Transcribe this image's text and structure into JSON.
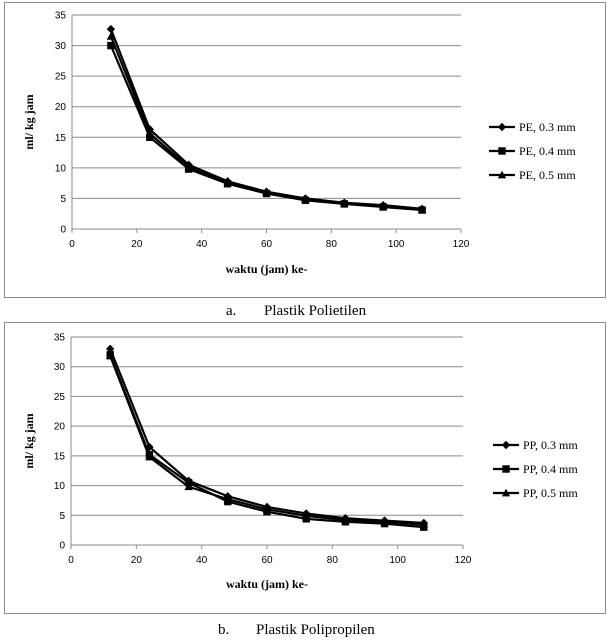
{
  "chart_data": [
    {
      "type": "line",
      "caption_letter": "a.",
      "caption_text": "Plastik Polietilen",
      "xlabel": "waktu (jam) ke-",
      "ylabel": "ml/ kg jam",
      "xlim": [
        0,
        120
      ],
      "ylim": [
        0,
        35
      ],
      "xticks": [
        0,
        20,
        40,
        60,
        80,
        100,
        120
      ],
      "yticks": [
        0,
        5,
        10,
        15,
        20,
        25,
        30,
        35
      ],
      "grid": true,
      "legend_position": "right",
      "x": [
        12,
        24,
        36,
        48,
        60,
        72,
        84,
        96,
        108
      ],
      "series": [
        {
          "name": "PE, 0.3 mm",
          "marker": "diamond",
          "values": [
            32.7,
            16.3,
            10.5,
            7.8,
            6.1,
            5.0,
            4.3,
            3.9,
            3.3
          ]
        },
        {
          "name": "PE, 0.4 mm",
          "marker": "square",
          "values": [
            30.0,
            15.0,
            9.8,
            7.4,
            5.8,
            4.7,
            4.1,
            3.6,
            3.1
          ]
        },
        {
          "name": "PE, 0.5 mm",
          "marker": "triangle",
          "values": [
            31.5,
            15.6,
            10.1,
            7.6,
            6.0,
            4.9,
            4.2,
            3.8,
            3.2
          ]
        }
      ]
    },
    {
      "type": "line",
      "caption_letter": "b.",
      "caption_text": "Plastik Polipropilen",
      "xlabel": "waktu (jam) ke-",
      "ylabel": "ml/ kg jam",
      "xlim": [
        0,
        120
      ],
      "ylim": [
        0,
        35
      ],
      "xticks": [
        0,
        20,
        40,
        60,
        80,
        100,
        120
      ],
      "yticks": [
        0,
        5,
        10,
        15,
        20,
        25,
        30,
        35
      ],
      "grid": true,
      "legend_position": "right",
      "x": [
        12,
        24,
        36,
        48,
        60,
        72,
        84,
        96,
        108
      ],
      "series": [
        {
          "name": "PP, 0.3 mm",
          "marker": "diamond",
          "values": [
            33.0,
            16.5,
            10.8,
            8.2,
            6.4,
            5.3,
            4.5,
            4.1,
            3.7
          ]
        },
        {
          "name": "PP, 0.4 mm",
          "marker": "square",
          "values": [
            32.0,
            15.2,
            10.5,
            7.3,
            5.6,
            4.4,
            3.9,
            3.6,
            3.0
          ]
        },
        {
          "name": "PP, 0.5 mm",
          "marker": "triangle",
          "values": [
            31.8,
            14.8,
            9.8,
            7.7,
            6.0,
            4.9,
            4.2,
            3.9,
            3.4
          ]
        }
      ]
    }
  ]
}
